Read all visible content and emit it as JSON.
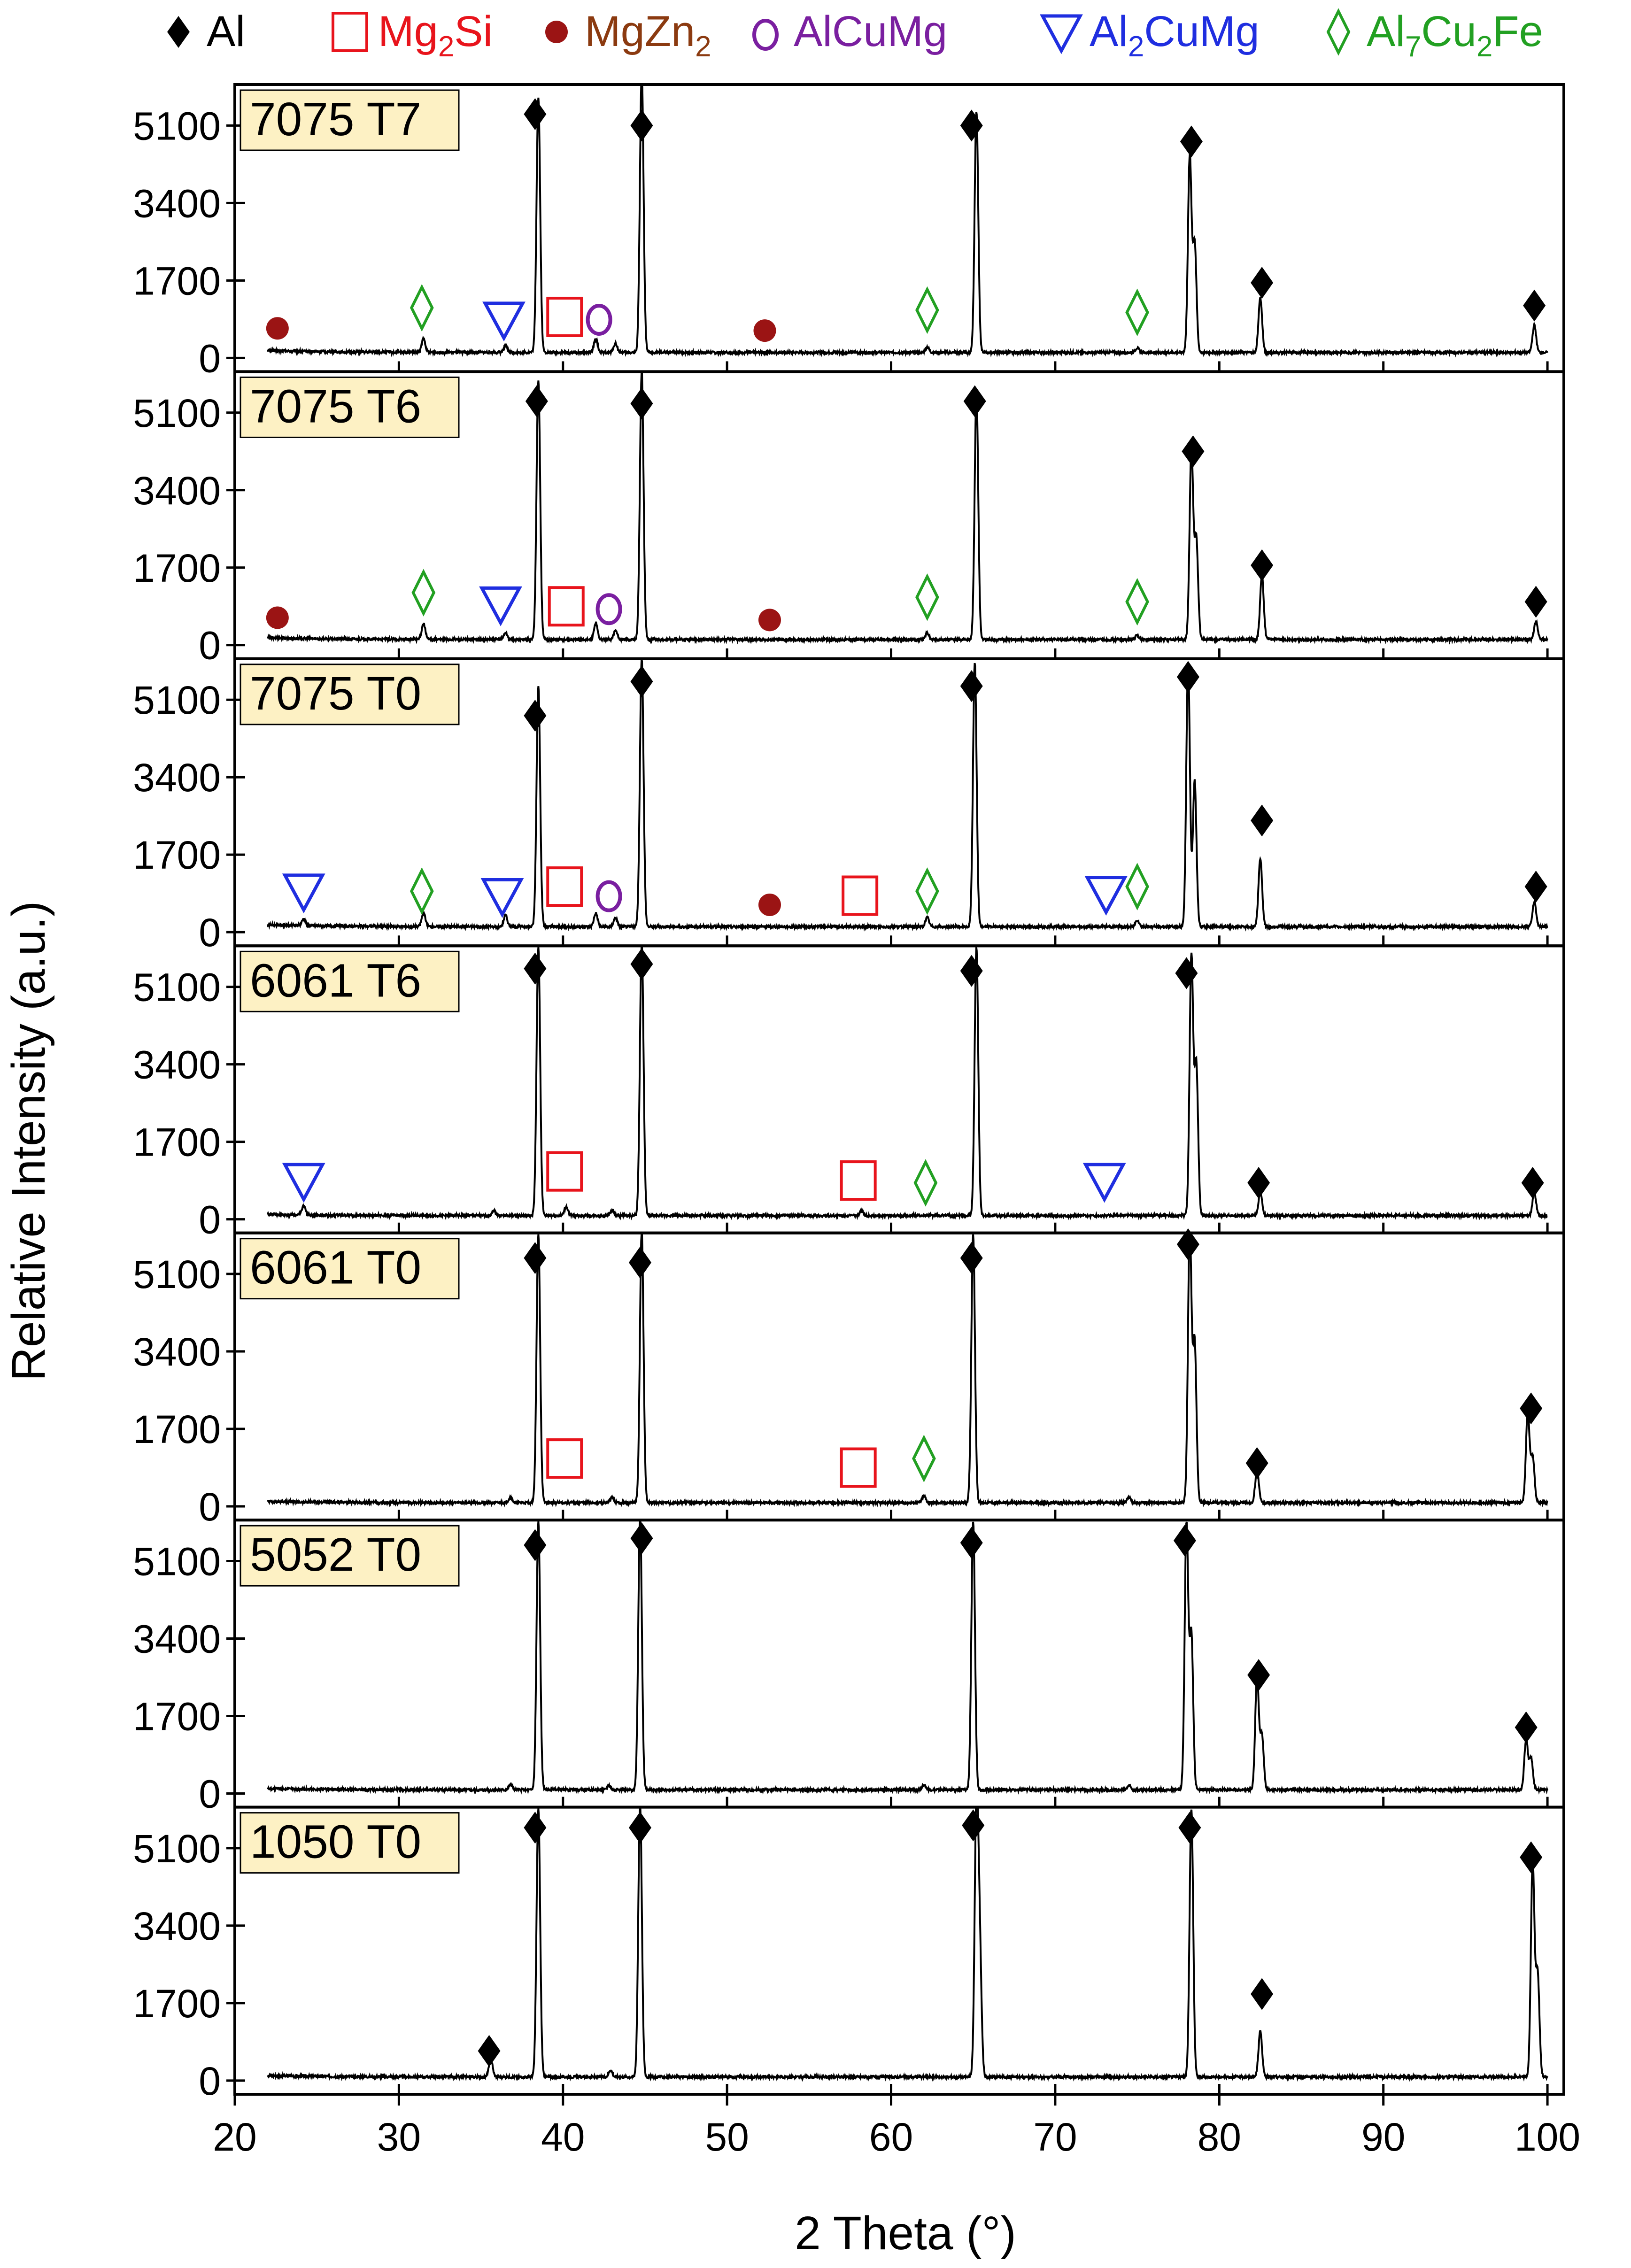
{
  "chart_data": {
    "type": "line",
    "xlabel": "2 Theta (°)",
    "ylabel": "Relative Intensity (a.u.)",
    "xlim": [
      20,
      101
    ],
    "ylim": [
      -300,
      6000
    ],
    "x_ticks": [
      20,
      30,
      40,
      50,
      60,
      70,
      80,
      90,
      100
    ],
    "y_ticks": [
      0,
      1700,
      3400,
      5100
    ],
    "colors": {
      "Al": "#000000",
      "Mg2Si": "#e8141c",
      "MgZn2": "#8b3a10",
      "MgZn2_marker": "#9b1414",
      "AlCuMg": "#7a1fa0",
      "Al2CuMg": "#1f2ee0",
      "Al7Cu2Fe": "#22a022",
      "label_bg": "#fdf1c4"
    },
    "legend": [
      {
        "key": "Al",
        "symbol": "diamond-filled",
        "text": "Al"
      },
      {
        "key": "Mg2Si",
        "symbol": "square-open",
        "text": "Mg",
        "sub": "2",
        "text2": "Si"
      },
      {
        "key": "MgZn2",
        "symbol": "circle-filled",
        "text": "MgZn",
        "sub": "2",
        "text2": ""
      },
      {
        "key": "AlCuMg",
        "symbol": "o-letter",
        "text": "AlCuMg"
      },
      {
        "key": "Al2CuMg",
        "symbol": "triangle-down-open",
        "text": "Al",
        "sub": "2",
        "text2": "CuMg"
      },
      {
        "key": "Al7Cu2Fe",
        "symbol": "diamond-open",
        "text": "Al",
        "sub": "7",
        "text2": "Cu",
        "sub2": "2",
        "text3": "Fe"
      }
    ],
    "series": [
      {
        "name": "7075 T7",
        "baseline": 120,
        "peaks": [
          [
            38.5,
            5600
          ],
          [
            44.8,
            6200
          ],
          [
            65.2,
            5300
          ],
          [
            78.2,
            4300
          ],
          [
            78.5,
            2400
          ],
          [
            82.5,
            1200
          ],
          [
            99.2,
            600
          ],
          [
            31.5,
            300
          ],
          [
            42.0,
            300
          ],
          [
            43.2,
            200
          ],
          [
            36.5,
            150
          ],
          [
            62.2,
            120
          ],
          [
            75.0,
            100
          ]
        ],
        "markers": [
          {
            "phase": "Al",
            "x": 38.3,
            "y": 5350
          },
          {
            "phase": "Al",
            "x": 44.8,
            "y": 5100
          },
          {
            "phase": "Al",
            "x": 64.9,
            "y": 5100
          },
          {
            "phase": "Al",
            "x": 78.3,
            "y": 4750
          },
          {
            "phase": "Al",
            "x": 82.6,
            "y": 1650
          },
          {
            "phase": "Al",
            "x": 99.2,
            "y": 1150
          },
          {
            "phase": "MgZn2",
            "x": 22.6,
            "y": 650
          },
          {
            "phase": "MgZn2",
            "x": 52.3,
            "y": 600
          },
          {
            "phase": "Al7Cu2Fe",
            "x": 31.4,
            "y": 1100
          },
          {
            "phase": "Al7Cu2Fe",
            "x": 62.2,
            "y": 1050
          },
          {
            "phase": "Al7Cu2Fe",
            "x": 75.0,
            "y": 1000
          },
          {
            "phase": "Al2CuMg",
            "x": 36.4,
            "y": 850
          },
          {
            "phase": "Mg2Si",
            "x": 40.1,
            "y": 900
          },
          {
            "phase": "AlCuMg",
            "x": 42.2,
            "y": 900
          }
        ]
      },
      {
        "name": "7075 T6",
        "baseline": 120,
        "peaks": [
          [
            38.5,
            5700
          ],
          [
            44.8,
            5900
          ],
          [
            65.2,
            5400
          ],
          [
            78.3,
            4200
          ],
          [
            78.6,
            2200
          ],
          [
            82.6,
            1400
          ],
          [
            99.3,
            400
          ],
          [
            31.5,
            350
          ],
          [
            42.0,
            350
          ],
          [
            43.2,
            200
          ],
          [
            36.5,
            150
          ],
          [
            62.2,
            150
          ],
          [
            75.0,
            100
          ]
        ],
        "markers": [
          {
            "phase": "Al",
            "x": 38.4,
            "y": 5350
          },
          {
            "phase": "Al",
            "x": 44.8,
            "y": 5300
          },
          {
            "phase": "Al",
            "x": 65.1,
            "y": 5350
          },
          {
            "phase": "Al",
            "x": 78.4,
            "y": 4250
          },
          {
            "phase": "Al",
            "x": 82.6,
            "y": 1750
          },
          {
            "phase": "Al",
            "x": 99.3,
            "y": 950
          },
          {
            "phase": "MgZn2",
            "x": 22.6,
            "y": 600
          },
          {
            "phase": "MgZn2",
            "x": 52.6,
            "y": 550
          },
          {
            "phase": "Al7Cu2Fe",
            "x": 31.5,
            "y": 1150
          },
          {
            "phase": "Al7Cu2Fe",
            "x": 62.2,
            "y": 1050
          },
          {
            "phase": "Al7Cu2Fe",
            "x": 75.0,
            "y": 950
          },
          {
            "phase": "Al2CuMg",
            "x": 36.2,
            "y": 900
          },
          {
            "phase": "Mg2Si",
            "x": 40.2,
            "y": 850
          },
          {
            "phase": "AlCuMg",
            "x": 42.8,
            "y": 850
          }
        ]
      },
      {
        "name": "7075 T0",
        "baseline": 120,
        "peaks": [
          [
            38.5,
            5300
          ],
          [
            44.8,
            5900
          ],
          [
            65.1,
            5800
          ],
          [
            78.1,
            5800
          ],
          [
            78.5,
            3200
          ],
          [
            82.5,
            1500
          ],
          [
            99.2,
            550
          ],
          [
            31.5,
            300
          ],
          [
            36.5,
            250
          ],
          [
            42.0,
            300
          ],
          [
            43.2,
            200
          ],
          [
            24.2,
            150
          ],
          [
            62.2,
            200
          ],
          [
            75.0,
            150
          ]
        ],
        "markers": [
          {
            "phase": "Al",
            "x": 38.3,
            "y": 4750
          },
          {
            "phase": "Al",
            "x": 44.8,
            "y": 5500
          },
          {
            "phase": "Al",
            "x": 64.9,
            "y": 5400
          },
          {
            "phase": "Al",
            "x": 78.1,
            "y": 5600
          },
          {
            "phase": "Al",
            "x": 82.6,
            "y": 2450
          },
          {
            "phase": "Al",
            "x": 99.3,
            "y": 1000
          },
          {
            "phase": "Al2CuMg",
            "x": 24.2,
            "y": 900
          },
          {
            "phase": "Al2CuMg",
            "x": 36.3,
            "y": 800
          },
          {
            "phase": "Al2CuMg",
            "x": 73.1,
            "y": 850
          },
          {
            "phase": "Al7Cu2Fe",
            "x": 31.4,
            "y": 900
          },
          {
            "phase": "Al7Cu2Fe",
            "x": 62.2,
            "y": 900
          },
          {
            "phase": "Al7Cu2Fe",
            "x": 75.0,
            "y": 1000
          },
          {
            "phase": "Mg2Si",
            "x": 40.1,
            "y": 1000
          },
          {
            "phase": "Mg2Si",
            "x": 58.1,
            "y": 800
          },
          {
            "phase": "AlCuMg",
            "x": 42.8,
            "y": 850
          },
          {
            "phase": "MgZn2",
            "x": 52.6,
            "y": 600
          }
        ]
      },
      {
        "name": "6061 T6",
        "baseline": 80,
        "peaks": [
          [
            38.5,
            5900
          ],
          [
            44.8,
            6000
          ],
          [
            65.2,
            5900
          ],
          [
            78.3,
            5700
          ],
          [
            78.6,
            3300
          ],
          [
            82.5,
            500
          ],
          [
            99.2,
            500
          ],
          [
            24.2,
            200
          ],
          [
            40.2,
            200
          ],
          [
            43.0,
            120
          ],
          [
            35.8,
            100
          ],
          [
            58.2,
            100
          ]
        ],
        "markers": [
          {
            "phase": "Al",
            "x": 38.3,
            "y": 5500
          },
          {
            "phase": "Al",
            "x": 44.8,
            "y": 5600
          },
          {
            "phase": "Al",
            "x": 64.9,
            "y": 5450
          },
          {
            "phase": "Al",
            "x": 78.0,
            "y": 5400
          },
          {
            "phase": "Al",
            "x": 82.4,
            "y": 800
          },
          {
            "phase": "Al",
            "x": 99.1,
            "y": 800
          },
          {
            "phase": "Al2CuMg",
            "x": 24.2,
            "y": 850
          },
          {
            "phase": "Al2CuMg",
            "x": 73.0,
            "y": 850
          },
          {
            "phase": "Mg2Si",
            "x": 40.1,
            "y": 1050
          },
          {
            "phase": "Mg2Si",
            "x": 58.0,
            "y": 850
          },
          {
            "phase": "Al7Cu2Fe",
            "x": 62.1,
            "y": 800
          }
        ]
      },
      {
        "name": "6061 T0",
        "baseline": 80,
        "peaks": [
          [
            38.5,
            5900
          ],
          [
            44.8,
            6000
          ],
          [
            65.0,
            5900
          ],
          [
            78.2,
            6000
          ],
          [
            78.5,
            3500
          ],
          [
            82.3,
            700
          ],
          [
            98.8,
            2000
          ],
          [
            99.1,
            1000
          ],
          [
            36.8,
            120
          ],
          [
            43.0,
            120
          ],
          [
            62.0,
            150
          ],
          [
            74.5,
            120
          ]
        ],
        "markers": [
          {
            "phase": "Al",
            "x": 38.3,
            "y": 5450
          },
          {
            "phase": "Al",
            "x": 44.7,
            "y": 5350
          },
          {
            "phase": "Al",
            "x": 64.9,
            "y": 5450
          },
          {
            "phase": "Al",
            "x": 78.1,
            "y": 5750
          },
          {
            "phase": "Al",
            "x": 82.3,
            "y": 950
          },
          {
            "phase": "Al",
            "x": 99.0,
            "y": 2150
          },
          {
            "phase": "Mg2Si",
            "x": 40.1,
            "y": 1050
          },
          {
            "phase": "Mg2Si",
            "x": 58.0,
            "y": 850
          },
          {
            "phase": "Al7Cu2Fe",
            "x": 62.0,
            "y": 1050
          }
        ]
      },
      {
        "name": "5052 T0",
        "baseline": 80,
        "peaks": [
          [
            38.5,
            5900
          ],
          [
            44.7,
            6000
          ],
          [
            65.0,
            5900
          ],
          [
            78.0,
            5800
          ],
          [
            78.3,
            3400
          ],
          [
            82.3,
            2500
          ],
          [
            82.6,
            1200
          ],
          [
            98.7,
            1100
          ],
          [
            99.0,
            700
          ],
          [
            36.8,
            120
          ],
          [
            42.8,
            100
          ],
          [
            62.0,
            120
          ],
          [
            74.5,
            100
          ]
        ],
        "markers": [
          {
            "phase": "Al",
            "x": 38.3,
            "y": 5450
          },
          {
            "phase": "Al",
            "x": 44.8,
            "y": 5600
          },
          {
            "phase": "Al",
            "x": 64.9,
            "y": 5500
          },
          {
            "phase": "Al",
            "x": 77.9,
            "y": 5550
          },
          {
            "phase": "Al",
            "x": 82.4,
            "y": 2600
          },
          {
            "phase": "Al",
            "x": 98.7,
            "y": 1450
          }
        ]
      },
      {
        "name": "1050 T0",
        "baseline": 80,
        "peaks": [
          [
            38.5,
            5900
          ],
          [
            44.7,
            6000
          ],
          [
            65.2,
            5900
          ],
          [
            65.4,
            2700
          ],
          [
            78.3,
            5900
          ],
          [
            82.5,
            1000
          ],
          [
            99.1,
            4700
          ],
          [
            99.4,
            2300
          ],
          [
            35.6,
            400
          ],
          [
            42.9,
            150
          ]
        ],
        "markers": [
          {
            "phase": "Al",
            "x": 38.3,
            "y": 5550
          },
          {
            "phase": "Al",
            "x": 44.7,
            "y": 5550
          },
          {
            "phase": "Al",
            "x": 65.0,
            "y": 5600
          },
          {
            "phase": "Al",
            "x": 78.2,
            "y": 5550
          },
          {
            "phase": "Al",
            "x": 82.6,
            "y": 1900
          },
          {
            "phase": "Al",
            "x": 99.0,
            "y": 4900
          },
          {
            "phase": "Al",
            "x": 35.5,
            "y": 650
          }
        ]
      }
    ]
  }
}
